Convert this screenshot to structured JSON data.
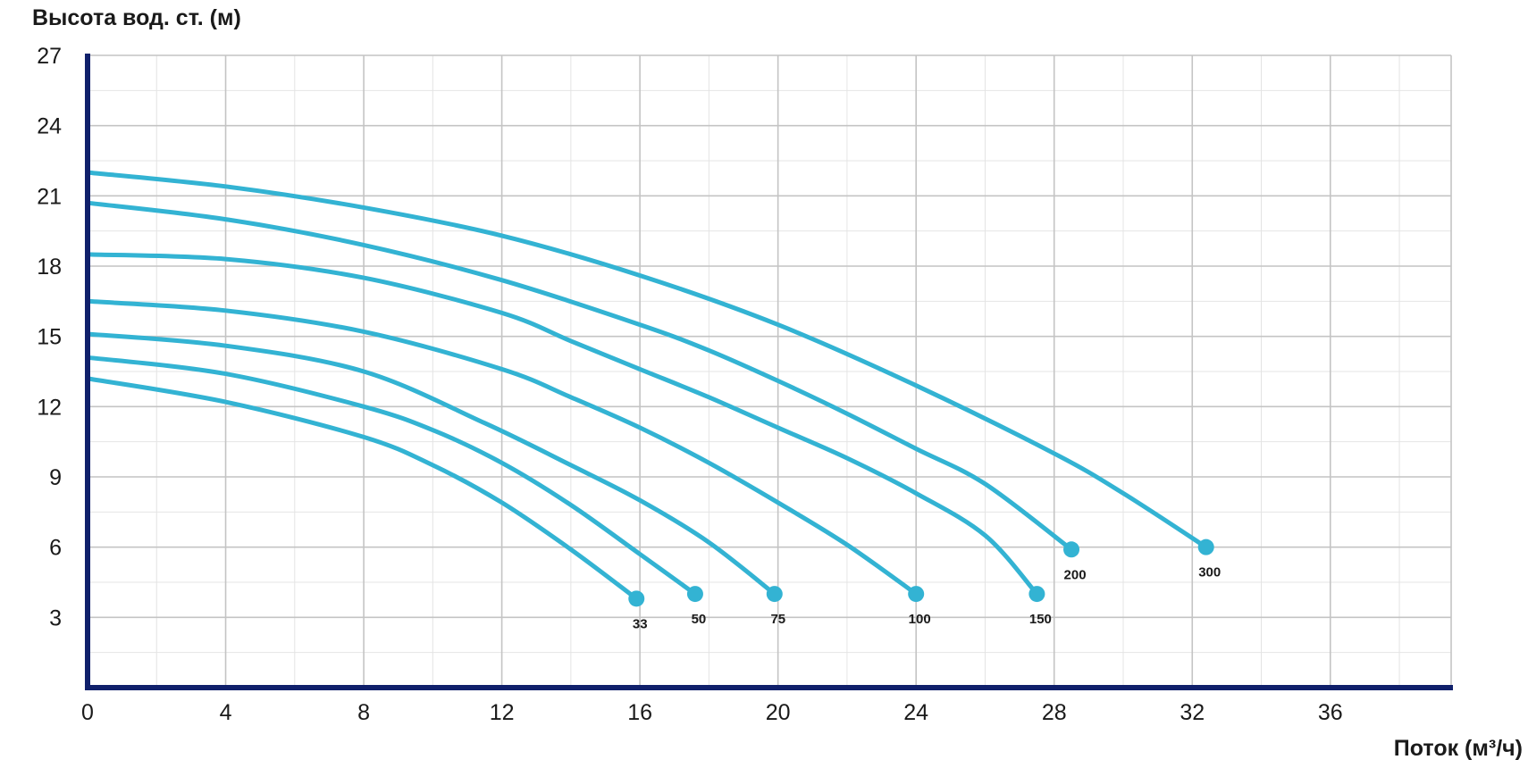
{
  "chart_data": {
    "type": "line",
    "xlabel": "Поток (м³/ч)",
    "ylabel": "Высота вод. ст. (м)",
    "xlim": [
      0,
      39.5
    ],
    "ylim": [
      0,
      27
    ],
    "x_ticks": [
      0,
      4,
      8,
      12,
      16,
      20,
      24,
      28,
      32,
      36
    ],
    "y_ticks": [
      3,
      6,
      9,
      12,
      15,
      18,
      21,
      24,
      27
    ],
    "x_minor_step": 2,
    "y_minor_step": 1.5,
    "grid": true,
    "legend": "none",
    "line_color": "#33b3d3",
    "axis_color": "#10206b",
    "series": [
      {
        "name": "33",
        "x": [
          0,
          4,
          8,
          10,
          12,
          14,
          15.9
        ],
        "y": [
          13.2,
          12.2,
          10.7,
          9.5,
          7.9,
          5.9,
          3.8
        ]
      },
      {
        "name": "50",
        "x": [
          0,
          4,
          8,
          10,
          12,
          14,
          16,
          17.6
        ],
        "y": [
          14.1,
          13.4,
          12.0,
          11.0,
          9.6,
          7.8,
          5.7,
          4.0
        ]
      },
      {
        "name": "75",
        "x": [
          0,
          4,
          8,
          11.5,
          14,
          16,
          18,
          19.9
        ],
        "y": [
          15.1,
          14.6,
          13.5,
          11.3,
          9.5,
          8.0,
          6.2,
          4.0
        ]
      },
      {
        "name": "100",
        "x": [
          0,
          4,
          8,
          12,
          14,
          16,
          18,
          20,
          22,
          24
        ],
        "y": [
          16.5,
          16.1,
          15.2,
          13.6,
          12.4,
          11.1,
          9.6,
          7.9,
          6.1,
          4.0
        ]
      },
      {
        "name": "150",
        "x": [
          0,
          4,
          8,
          12,
          14,
          16,
          18,
          20,
          22,
          24,
          26,
          27.5
        ],
        "y": [
          18.5,
          18.3,
          17.5,
          16.0,
          14.8,
          13.6,
          12.4,
          11.1,
          9.8,
          8.3,
          6.5,
          4.0
        ]
      },
      {
        "name": "200",
        "x": [
          0,
          4,
          8,
          12,
          16,
          18,
          20,
          22,
          24,
          26,
          28.5
        ],
        "y": [
          20.7,
          20.0,
          18.9,
          17.4,
          15.5,
          14.4,
          13.1,
          11.7,
          10.2,
          8.7,
          5.9
        ]
      },
      {
        "name": "300",
        "x": [
          0,
          4,
          8,
          12,
          16,
          20,
          24,
          28,
          30,
          32.4
        ],
        "y": [
          22.0,
          21.4,
          20.5,
          19.3,
          17.6,
          15.5,
          12.9,
          10.0,
          8.3,
          6.0
        ]
      }
    ]
  }
}
